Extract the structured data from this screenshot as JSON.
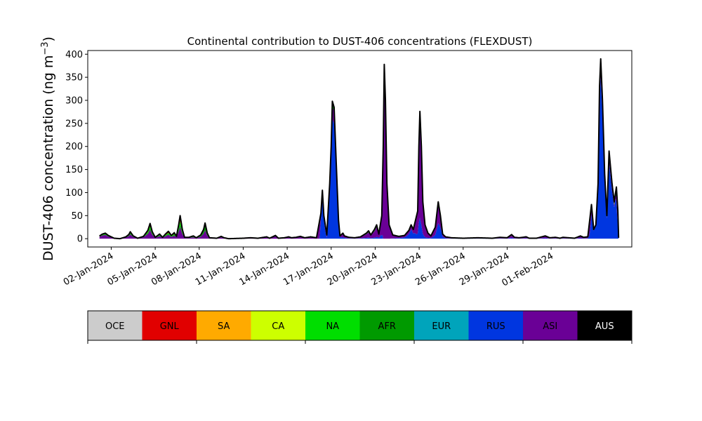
{
  "chart_data": {
    "type": "area",
    "title": "Continental contribution to DUST-406 concentrations (FLEXDUST)",
    "ylabel": "DUST-406 concentration (ng m",
    "ylabel_sup": "−3",
    "ylabel_close": ")",
    "xlabel": "",
    "ylim": [
      -18,
      408
    ],
    "yticks": [
      0,
      50,
      100,
      150,
      200,
      250,
      300,
      350,
      400
    ],
    "ytick_labels": [
      "0",
      "50",
      "100",
      "150",
      "200",
      "250",
      "300",
      "350",
      "400"
    ],
    "xlim": [
      -1.6,
      35.5
    ],
    "xticks": [
      0,
      3,
      6,
      9,
      12,
      15,
      18,
      21,
      24,
      27,
      30
    ],
    "xtick_labels": [
      "02-Jan-2024",
      "05-Jan-2024",
      "08-Jan-2024",
      "11-Jan-2024",
      "14-Jan-2024",
      "17-Jan-2024",
      "20-Jan-2024",
      "23-Jan-2024",
      "26-Jan-2024",
      "29-Jan-2024",
      "01-Feb-2024"
    ],
    "series_order": [
      "RUS",
      "ASI",
      "AFR",
      "NA",
      "GNL"
    ],
    "total_points": [
      [
        -0.8,
        6
      ],
      [
        -0.6,
        10
      ],
      [
        -0.4,
        12
      ],
      [
        -0.2,
        7
      ],
      [
        0.2,
        1
      ],
      [
        0.6,
        0
      ],
      [
        1,
        4
      ],
      [
        1.2,
        9
      ],
      [
        1.3,
        15
      ],
      [
        1.5,
        6
      ],
      [
        1.8,
        1
      ],
      [
        2.2,
        5
      ],
      [
        2.5,
        18
      ],
      [
        2.65,
        33
      ],
      [
        2.8,
        15
      ],
      [
        3,
        3
      ],
      [
        3.3,
        10
      ],
      [
        3.5,
        3
      ],
      [
        3.7,
        10
      ],
      [
        3.9,
        16
      ],
      [
        4.1,
        7
      ],
      [
        4.3,
        13
      ],
      [
        4.45,
        5
      ],
      [
        4.6,
        30
      ],
      [
        4.7,
        50
      ],
      [
        4.85,
        20
      ],
      [
        5,
        3
      ],
      [
        5.3,
        3
      ],
      [
        5.6,
        6
      ],
      [
        5.8,
        2
      ],
      [
        6.1,
        8
      ],
      [
        6.3,
        20
      ],
      [
        6.4,
        34
      ],
      [
        6.55,
        12
      ],
      [
        6.7,
        2
      ],
      [
        7.2,
        1
      ],
      [
        7.5,
        5
      ],
      [
        7.7,
        2
      ],
      [
        8,
        0
      ],
      [
        9,
        1
      ],
      [
        9.5,
        2
      ],
      [
        10,
        1
      ],
      [
        10.6,
        4
      ],
      [
        10.8,
        1
      ],
      [
        11.2,
        7
      ],
      [
        11.4,
        1
      ],
      [
        11.8,
        2
      ],
      [
        12.1,
        4
      ],
      [
        12.3,
        2
      ],
      [
        12.6,
        3
      ],
      [
        12.9,
        5
      ],
      [
        13.2,
        2
      ],
      [
        13.6,
        4
      ],
      [
        13.8,
        3
      ],
      [
        14,
        2
      ],
      [
        14.3,
        55
      ],
      [
        14.4,
        105
      ],
      [
        14.5,
        50
      ],
      [
        14.7,
        8
      ],
      [
        14.9,
        120
      ],
      [
        15,
        200
      ],
      [
        15.08,
        298
      ],
      [
        15.2,
        285
      ],
      [
        15.35,
        160
      ],
      [
        15.5,
        40
      ],
      [
        15.6,
        6
      ],
      [
        15.8,
        12
      ],
      [
        15.9,
        6
      ],
      [
        16.2,
        3
      ],
      [
        16.6,
        2
      ],
      [
        17,
        4
      ],
      [
        17.4,
        12
      ],
      [
        17.55,
        17
      ],
      [
        17.7,
        8
      ],
      [
        17.95,
        20
      ],
      [
        18.1,
        30
      ],
      [
        18.25,
        10
      ],
      [
        18.45,
        50
      ],
      [
        18.55,
        200
      ],
      [
        18.62,
        378
      ],
      [
        18.7,
        300
      ],
      [
        18.8,
        120
      ],
      [
        18.95,
        30
      ],
      [
        19.2,
        8
      ],
      [
        19.6,
        5
      ],
      [
        20,
        7
      ],
      [
        20.3,
        18
      ],
      [
        20.45,
        30
      ],
      [
        20.6,
        20
      ],
      [
        20.9,
        60
      ],
      [
        20.98,
        200
      ],
      [
        21.05,
        276
      ],
      [
        21.15,
        200
      ],
      [
        21.25,
        80
      ],
      [
        21.4,
        30
      ],
      [
        21.6,
        12
      ],
      [
        21.8,
        6
      ],
      [
        22.1,
        25
      ],
      [
        22.3,
        80
      ],
      [
        22.45,
        50
      ],
      [
        22.6,
        10
      ],
      [
        22.8,
        4
      ],
      [
        23.2,
        2
      ],
      [
        24,
        1
      ],
      [
        25,
        2
      ],
      [
        26,
        1
      ],
      [
        26.5,
        3
      ],
      [
        27,
        2
      ],
      [
        27.3,
        9
      ],
      [
        27.5,
        3
      ],
      [
        27.8,
        2
      ],
      [
        28.3,
        4
      ],
      [
        28.5,
        1
      ],
      [
        29,
        1
      ],
      [
        29.6,
        6
      ],
      [
        29.9,
        2
      ],
      [
        30.3,
        3
      ],
      [
        30.6,
        1
      ],
      [
        30.8,
        3
      ],
      [
        31.2,
        2
      ],
      [
        31.6,
        1
      ],
      [
        32,
        6
      ],
      [
        32.2,
        3
      ],
      [
        32.5,
        4
      ],
      [
        32.75,
        74
      ],
      [
        32.9,
        20
      ],
      [
        33.05,
        30
      ],
      [
        33.2,
        120
      ],
      [
        33.3,
        330
      ],
      [
        33.38,
        390
      ],
      [
        33.5,
        300
      ],
      [
        33.65,
        140
      ],
      [
        33.8,
        50
      ],
      [
        33.95,
        190
      ],
      [
        34.15,
        120
      ],
      [
        34.3,
        80
      ],
      [
        34.45,
        112
      ],
      [
        34.55,
        60
      ],
      [
        34.6,
        2
      ]
    ],
    "series": [
      {
        "name": "RUS",
        "color": "#0036E0",
        "fraction": [
          [
            -1,
            0
          ],
          [
            14.2,
            0
          ],
          [
            14.3,
            0.8
          ],
          [
            14.5,
            0.85
          ],
          [
            14.7,
            0.3
          ],
          [
            14.85,
            0.85
          ],
          [
            15.5,
            0.9
          ],
          [
            15.7,
            0.3
          ],
          [
            18,
            0.1
          ],
          [
            18.4,
            0.2
          ],
          [
            18.55,
            0
          ],
          [
            19,
            0
          ],
          [
            20.2,
            0.5
          ],
          [
            20.5,
            0.7
          ],
          [
            20.8,
            0.2
          ],
          [
            21.5,
            0.1
          ],
          [
            22,
            0.3
          ],
          [
            22.5,
            0.5
          ],
          [
            23,
            0.2
          ],
          [
            32.6,
            0.2
          ],
          [
            32.8,
            0.85
          ],
          [
            33.3,
            0.9
          ],
          [
            34.4,
            0.85
          ],
          [
            34.6,
            0.3
          ]
        ]
      },
      {
        "name": "ASI",
        "color": "#6A0096",
        "fraction": [
          [
            -1,
            0.7
          ],
          [
            5,
            0.5
          ],
          [
            14.2,
            0.8
          ],
          [
            14.3,
            0.1
          ],
          [
            14.5,
            0.1
          ],
          [
            14.7,
            0.5
          ],
          [
            14.85,
            0.1
          ],
          [
            15.5,
            0.08
          ],
          [
            15.7,
            0.5
          ],
          [
            18,
            0.7
          ],
          [
            18.55,
            0.95
          ],
          [
            19,
            0.9
          ],
          [
            20.2,
            0.4
          ],
          [
            20.5,
            0.2
          ],
          [
            20.8,
            0.7
          ],
          [
            21,
            0.95
          ],
          [
            21.5,
            0.8
          ],
          [
            22,
            0.6
          ],
          [
            22.5,
            0.4
          ],
          [
            23,
            0.5
          ],
          [
            32.6,
            0.5
          ],
          [
            32.8,
            0.08
          ],
          [
            33.3,
            0.05
          ],
          [
            34.4,
            0.06
          ],
          [
            34.6,
            0.3
          ]
        ]
      },
      {
        "name": "AFR",
        "color": "#009A00",
        "fraction": [
          [
            -1,
            0.1
          ],
          [
            6,
            0.1
          ],
          [
            6.3,
            0.4
          ],
          [
            6.6,
            0.1
          ],
          [
            33,
            0.02
          ],
          [
            34.45,
            0.05
          ],
          [
            34.55,
            0.35
          ],
          [
            34.6,
            0.4
          ]
        ]
      },
      {
        "name": "NA",
        "color": "#00DE00",
        "fraction": [
          [
            -1,
            0.1
          ],
          [
            4,
            0.15
          ],
          [
            7,
            0.15
          ],
          [
            20,
            0.05
          ],
          [
            34,
            0.02
          ],
          [
            34.6,
            0
          ]
        ]
      },
      {
        "name": "GNL",
        "color": "#E10000",
        "fraction": [
          [
            -1,
            0.1
          ],
          [
            3,
            0.15
          ],
          [
            10,
            0.1
          ],
          [
            24.5,
            0.2
          ],
          [
            35,
            0.1
          ]
        ]
      }
    ],
    "legend": [
      {
        "label": "OCE",
        "color": "#CCCCCC",
        "text_color": "#000000"
      },
      {
        "label": "GNL",
        "color": "#E10000",
        "text_color": "#000000"
      },
      {
        "label": "SA",
        "color": "#FFAA00",
        "text_color": "#000000"
      },
      {
        "label": "CA",
        "color": "#CDFF00",
        "text_color": "#000000"
      },
      {
        "label": "NA",
        "color": "#00DE00",
        "text_color": "#000000"
      },
      {
        "label": "AFR",
        "color": "#009A00",
        "text_color": "#000000"
      },
      {
        "label": "EUR",
        "color": "#00A4BB",
        "text_color": "#000000"
      },
      {
        "label": "RUS",
        "color": "#0036E0",
        "text_color": "#000000"
      },
      {
        "label": "ASI",
        "color": "#6A0096",
        "text_color": "#000000"
      },
      {
        "label": "AUS",
        "color": "#000000",
        "text_color": "#FFFFFF"
      }
    ],
    "grid": false
  }
}
